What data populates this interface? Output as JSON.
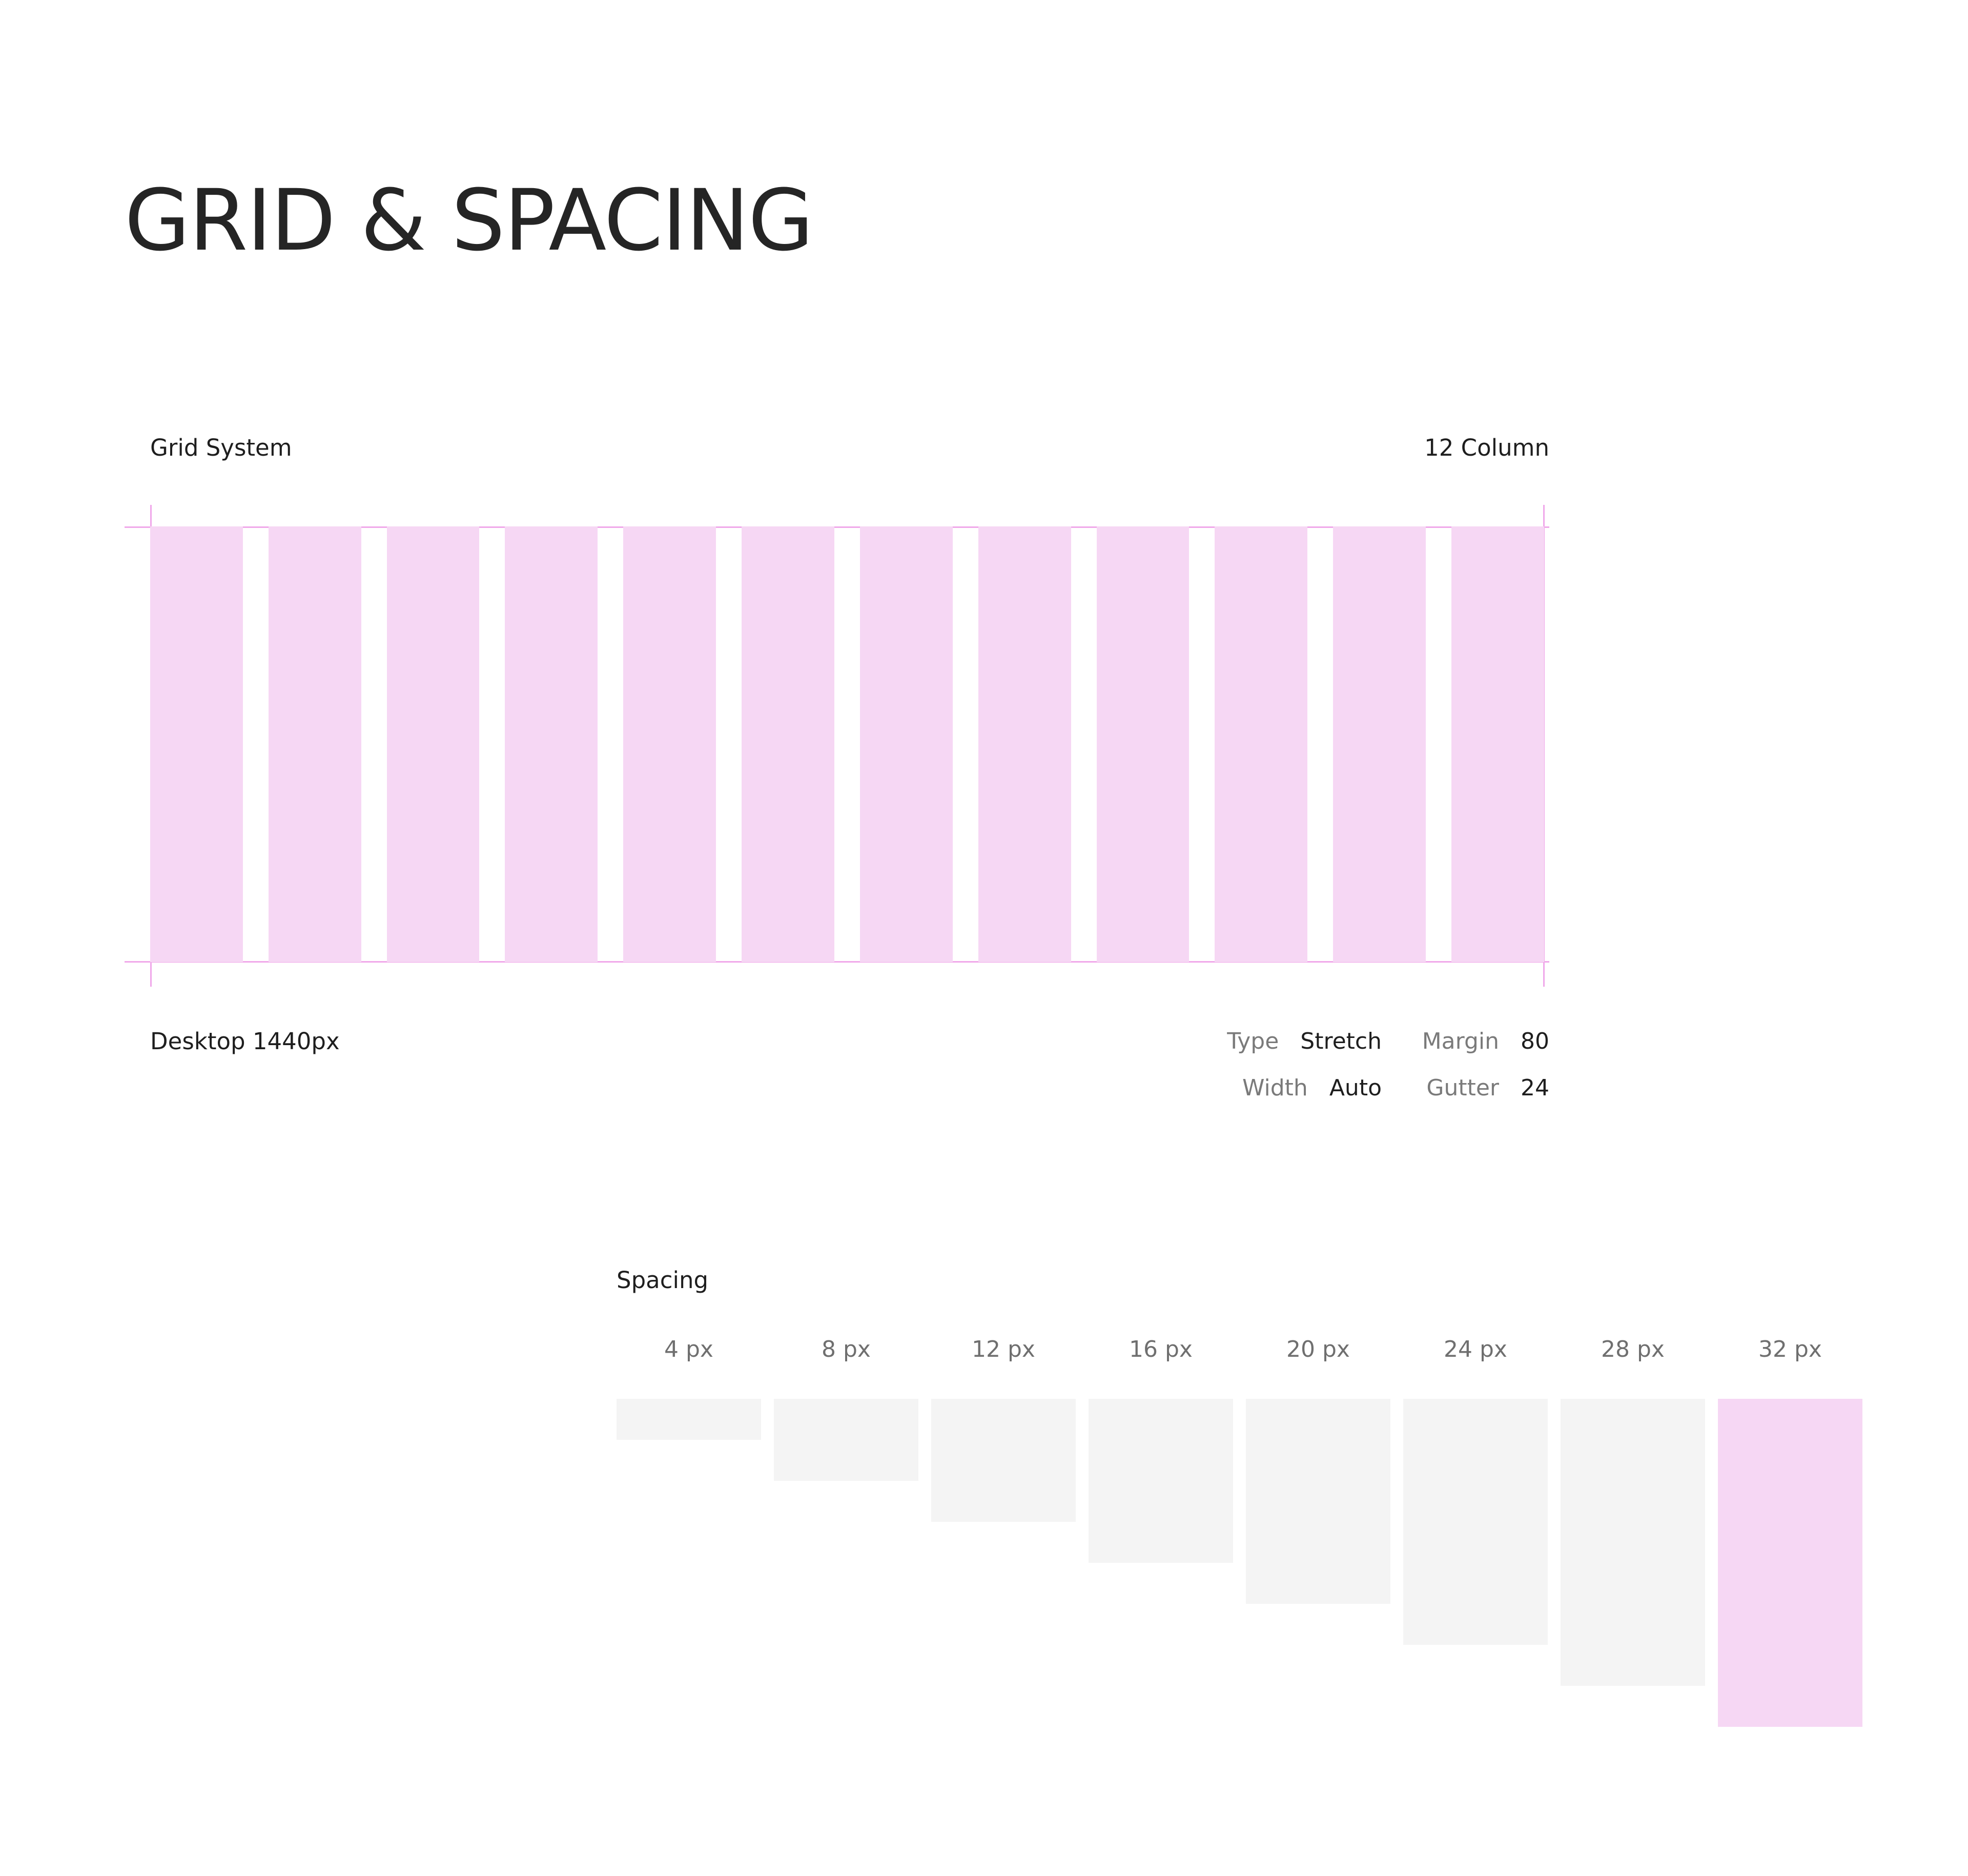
{
  "page": {
    "title": "GRID & SPACING"
  },
  "grid": {
    "label": "Grid System",
    "columns_label": "12 Column",
    "column_count": 12,
    "device_label": "Desktop 1440px",
    "specs": {
      "type_key": "Type",
      "type_value": "Stretch",
      "margin_key": "Margin",
      "margin_value": "80",
      "width_key": "Width",
      "width_value": "Auto",
      "gutter_key": "Gutter",
      "gutter_value": "24"
    },
    "colors": {
      "column_fill": "#f6d7f4",
      "guide_line": "#f0a8ea"
    }
  },
  "spacing": {
    "label": "Spacing",
    "items": [
      {
        "label": "4 px",
        "value": 4
      },
      {
        "label": "8 px",
        "value": 8
      },
      {
        "label": "12 px",
        "value": 12
      },
      {
        "label": "16 px",
        "value": 16
      },
      {
        "label": "20 px",
        "value": 20
      },
      {
        "label": "24 px",
        "value": 24
      },
      {
        "label": "28 px",
        "value": 28
      },
      {
        "label": "32 px",
        "value": 32,
        "highlight": true
      }
    ],
    "colors": {
      "default_fill": "#f4f4f4",
      "highlight_fill": "#f6d7f4"
    }
  }
}
